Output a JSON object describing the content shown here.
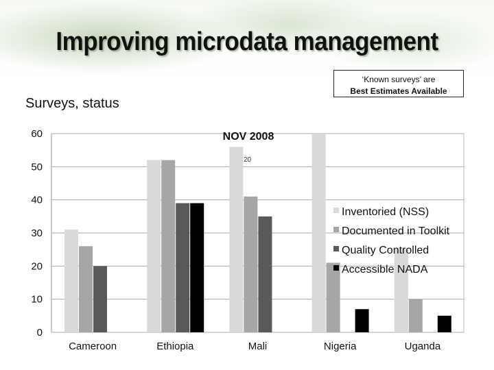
{
  "slide": {
    "title": "Improving microdata management",
    "subtitle": "Surveys, status",
    "note_line1": "‘Known surveys’ are",
    "note_line2": "Best Estimates Available"
  },
  "chart_data": {
    "type": "bar",
    "categories": [
      "Cameroon",
      "Ethiopia",
      "Mali",
      "Nigeria",
      "Uganda"
    ],
    "series": [
      {
        "name": "Inventoried (NSS)",
        "color": "#d9d9d9",
        "values": [
          31,
          52,
          56,
          60,
          25
        ]
      },
      {
        "name": "Documented in Toolkit",
        "color": "#a6a6a6",
        "values": [
          26,
          52,
          41,
          21,
          10
        ]
      },
      {
        "name": "Quality Controlled",
        "color": "#595959",
        "values": [
          20,
          39,
          35,
          0,
          0
        ]
      },
      {
        "name": "Accessible NADA",
        "color": "#000000",
        "values": [
          0,
          39,
          0,
          7,
          5
        ]
      }
    ],
    "ylim": [
      0,
      60
    ],
    "yticks": [
      0,
      10,
      20,
      30,
      40,
      50,
      60
    ],
    "grid": true,
    "legend": "right",
    "annotations": [
      {
        "text": "NOV 2008"
      },
      {
        "text": "20"
      }
    ]
  }
}
